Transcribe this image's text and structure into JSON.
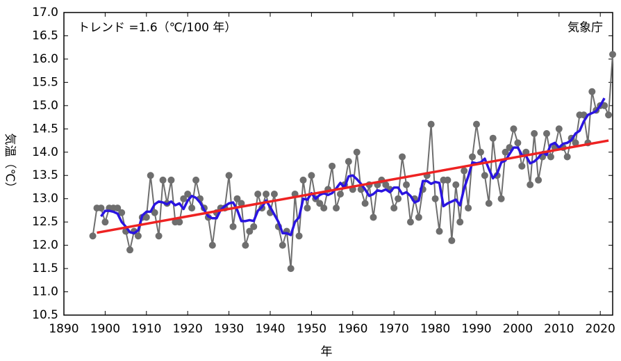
{
  "chart_data": {
    "type": "line",
    "title": "トレンド =1.6（℃/100 年）",
    "annotation": "気象庁",
    "xlabel": "年",
    "ylabel": "気温（℃）",
    "xlim": [
      1890,
      2023
    ],
    "ylim": [
      10.5,
      17.0
    ],
    "xticks": [
      1890,
      1900,
      1910,
      1920,
      1930,
      1940,
      1950,
      1960,
      1970,
      1980,
      1990,
      2000,
      2010,
      2020
    ],
    "yticks": [
      10.5,
      {
        "value": 11,
        "label": "11.0"
      },
      11.5,
      {
        "value": 12,
        "label": "12.0"
      },
      12.5,
      {
        "value": 13,
        "label": "13.0"
      },
      13.5,
      {
        "value": 14,
        "label": "14.0"
      },
      14.5,
      {
        "value": 15,
        "label": "15.0"
      },
      15.5,
      {
        "value": 16,
        "label": "16.0"
      },
      16.5,
      {
        "value": 17,
        "label": "17.0"
      }
    ],
    "grid": false,
    "series": [
      {
        "color": "#6e6e6e",
        "markers": true,
        "x": [
          1897,
          1898,
          1899,
          1900,
          1901,
          1902,
          1903,
          1904,
          1905,
          1906,
          1907,
          1908,
          1909,
          1910,
          1911,
          1912,
          1913,
          1914,
          1915,
          1916,
          1917,
          1918,
          1919,
          1920,
          1921,
          1922,
          1923,
          1924,
          1925,
          1926,
          1927,
          1928,
          1929,
          1930,
          1931,
          1932,
          1933,
          1934,
          1935,
          1936,
          1937,
          1938,
          1939,
          1940,
          1941,
          1942,
          1943,
          1944,
          1945,
          1946,
          1947,
          1948,
          1949,
          1950,
          1951,
          1952,
          1953,
          1954,
          1955,
          1956,
          1957,
          1958,
          1959,
          1960,
          1961,
          1962,
          1963,
          1964,
          1965,
          1966,
          1967,
          1968,
          1969,
          1970,
          1971,
          1972,
          1973,
          1974,
          1975,
          1976,
          1977,
          1978,
          1979,
          1980,
          1981,
          1982,
          1983,
          1984,
          1985,
          1986,
          1987,
          1988,
          1989,
          1990,
          1991,
          1992,
          1993,
          1994,
          1995,
          1996,
          1997,
          1998,
          1999,
          2000,
          2001,
          2002,
          2003,
          2004,
          2005,
          2006,
          2007,
          2008,
          2009,
          2010,
          2011,
          2012,
          2013,
          2014,
          2015,
          2016,
          2017,
          2018,
          2019,
          2020,
          2021,
          2022,
          2023
        ],
        "values": [
          12.2,
          12.8,
          12.8,
          12.5,
          12.8,
          12.8,
          12.8,
          12.7,
          12.3,
          11.9,
          12.3,
          12.2,
          12.6,
          12.6,
          13.5,
          12.7,
          12.2,
          13.4,
          12.9,
          13.4,
          12.5,
          12.5,
          13.0,
          13.1,
          12.8,
          13.4,
          13.0,
          12.8,
          12.6,
          12.0,
          12.7,
          12.8,
          12.8,
          13.5,
          12.4,
          13.0,
          12.9,
          12.0,
          12.3,
          12.4,
          13.1,
          12.8,
          13.1,
          12.7,
          13.1,
          12.4,
          12.0,
          12.3,
          11.5,
          13.1,
          12.2,
          13.4,
          12.8,
          13.5,
          13.0,
          12.9,
          12.8,
          13.2,
          13.7,
          12.8,
          13.1,
          13.3,
          13.8,
          13.2,
          14.0,
          13.2,
          12.9,
          13.3,
          12.6,
          13.3,
          13.4,
          13.3,
          13.2,
          12.8,
          13.0,
          13.9,
          13.3,
          12.5,
          13.0,
          12.6,
          13.2,
          13.5,
          14.6,
          13.0,
          12.3,
          13.4,
          13.4,
          12.1,
          13.3,
          12.5,
          13.6,
          12.8,
          13.9,
          14.6,
          14.0,
          13.5,
          12.9,
          14.3,
          13.5,
          13.0,
          14.0,
          14.1,
          14.5,
          14.2,
          13.7,
          14.0,
          13.3,
          14.4,
          13.4,
          13.9,
          14.4,
          13.9,
          14.1,
          14.5,
          14.1,
          13.9,
          14.3,
          14.2,
          14.8,
          14.8,
          14.2,
          15.3,
          14.9,
          15.0,
          15.0,
          14.8,
          16.1
        ]
      },
      {
        "color": "#2a14e0",
        "markers": false,
        "x": [
          1899,
          1900,
          1901,
          1902,
          1903,
          1904,
          1905,
          1906,
          1907,
          1908,
          1909,
          1910,
          1911,
          1912,
          1913,
          1914,
          1915,
          1916,
          1917,
          1918,
          1919,
          1920,
          1921,
          1922,
          1923,
          1924,
          1925,
          1926,
          1927,
          1928,
          1929,
          1930,
          1931,
          1932,
          1933,
          1934,
          1935,
          1936,
          1937,
          1938,
          1939,
          1940,
          1941,
          1942,
          1943,
          1944,
          1945,
          1946,
          1947,
          1948,
          1949,
          1950,
          1951,
          1952,
          1953,
          1954,
          1955,
          1956,
          1957,
          1958,
          1959,
          1960,
          1961,
          1962,
          1963,
          1964,
          1965,
          1966,
          1967,
          1968,
          1969,
          1970,
          1971,
          1972,
          1973,
          1974,
          1975,
          1976,
          1977,
          1978,
          1979,
          1980,
          1981,
          1982,
          1983,
          1984,
          1985,
          1986,
          1987,
          1988,
          1989,
          1990,
          1991,
          1992,
          1993,
          1994,
          1995,
          1996,
          1997,
          1998,
          1999,
          2000,
          2001,
          2002,
          2003,
          2004,
          2005,
          2006,
          2007,
          2008,
          2009,
          2010,
          2011,
          2012,
          2013,
          2014,
          2015,
          2016,
          2017,
          2018,
          2019,
          2020,
          2021
        ],
        "values": [
          12.62,
          12.74,
          12.74,
          12.72,
          12.68,
          12.5,
          12.4,
          12.28,
          12.26,
          12.32,
          12.64,
          12.72,
          12.72,
          12.88,
          12.94,
          12.92,
          12.88,
          12.94,
          12.86,
          12.9,
          12.78,
          12.96,
          13.06,
          13.02,
          12.92,
          12.76,
          12.62,
          12.58,
          12.58,
          12.76,
          12.84,
          12.9,
          12.92,
          12.76,
          12.52,
          12.52,
          12.54,
          12.52,
          12.74,
          12.82,
          12.96,
          12.82,
          12.66,
          12.5,
          12.26,
          12.26,
          12.22,
          12.5,
          12.6,
          13.0,
          12.98,
          13.12,
          13.0,
          13.08,
          13.12,
          13.08,
          13.12,
          13.22,
          13.34,
          13.24,
          13.48,
          13.5,
          13.42,
          13.32,
          13.2,
          13.06,
          13.1,
          13.18,
          13.16,
          13.2,
          13.14,
          13.24,
          13.24,
          13.1,
          13.14,
          13.06,
          12.92,
          12.96,
          13.38,
          13.38,
          13.32,
          13.36,
          13.34,
          12.84,
          12.9,
          12.94,
          12.98,
          12.86,
          13.22,
          13.48,
          13.78,
          13.76,
          13.78,
          13.86,
          13.64,
          13.44,
          13.54,
          13.78,
          13.82,
          13.96,
          14.1,
          14.1,
          13.94,
          13.92,
          13.76,
          13.8,
          13.88,
          14.0,
          13.94,
          14.16,
          14.2,
          14.1,
          14.18,
          14.2,
          14.26,
          14.4,
          14.46,
          14.66,
          14.8,
          14.84,
          14.88,
          15.0,
          15.16
        ]
      },
      {
        "color": "#ee2222",
        "markers": false,
        "x": [
          1898,
          2022
        ],
        "values": [
          12.27,
          14.25
        ]
      }
    ]
  }
}
